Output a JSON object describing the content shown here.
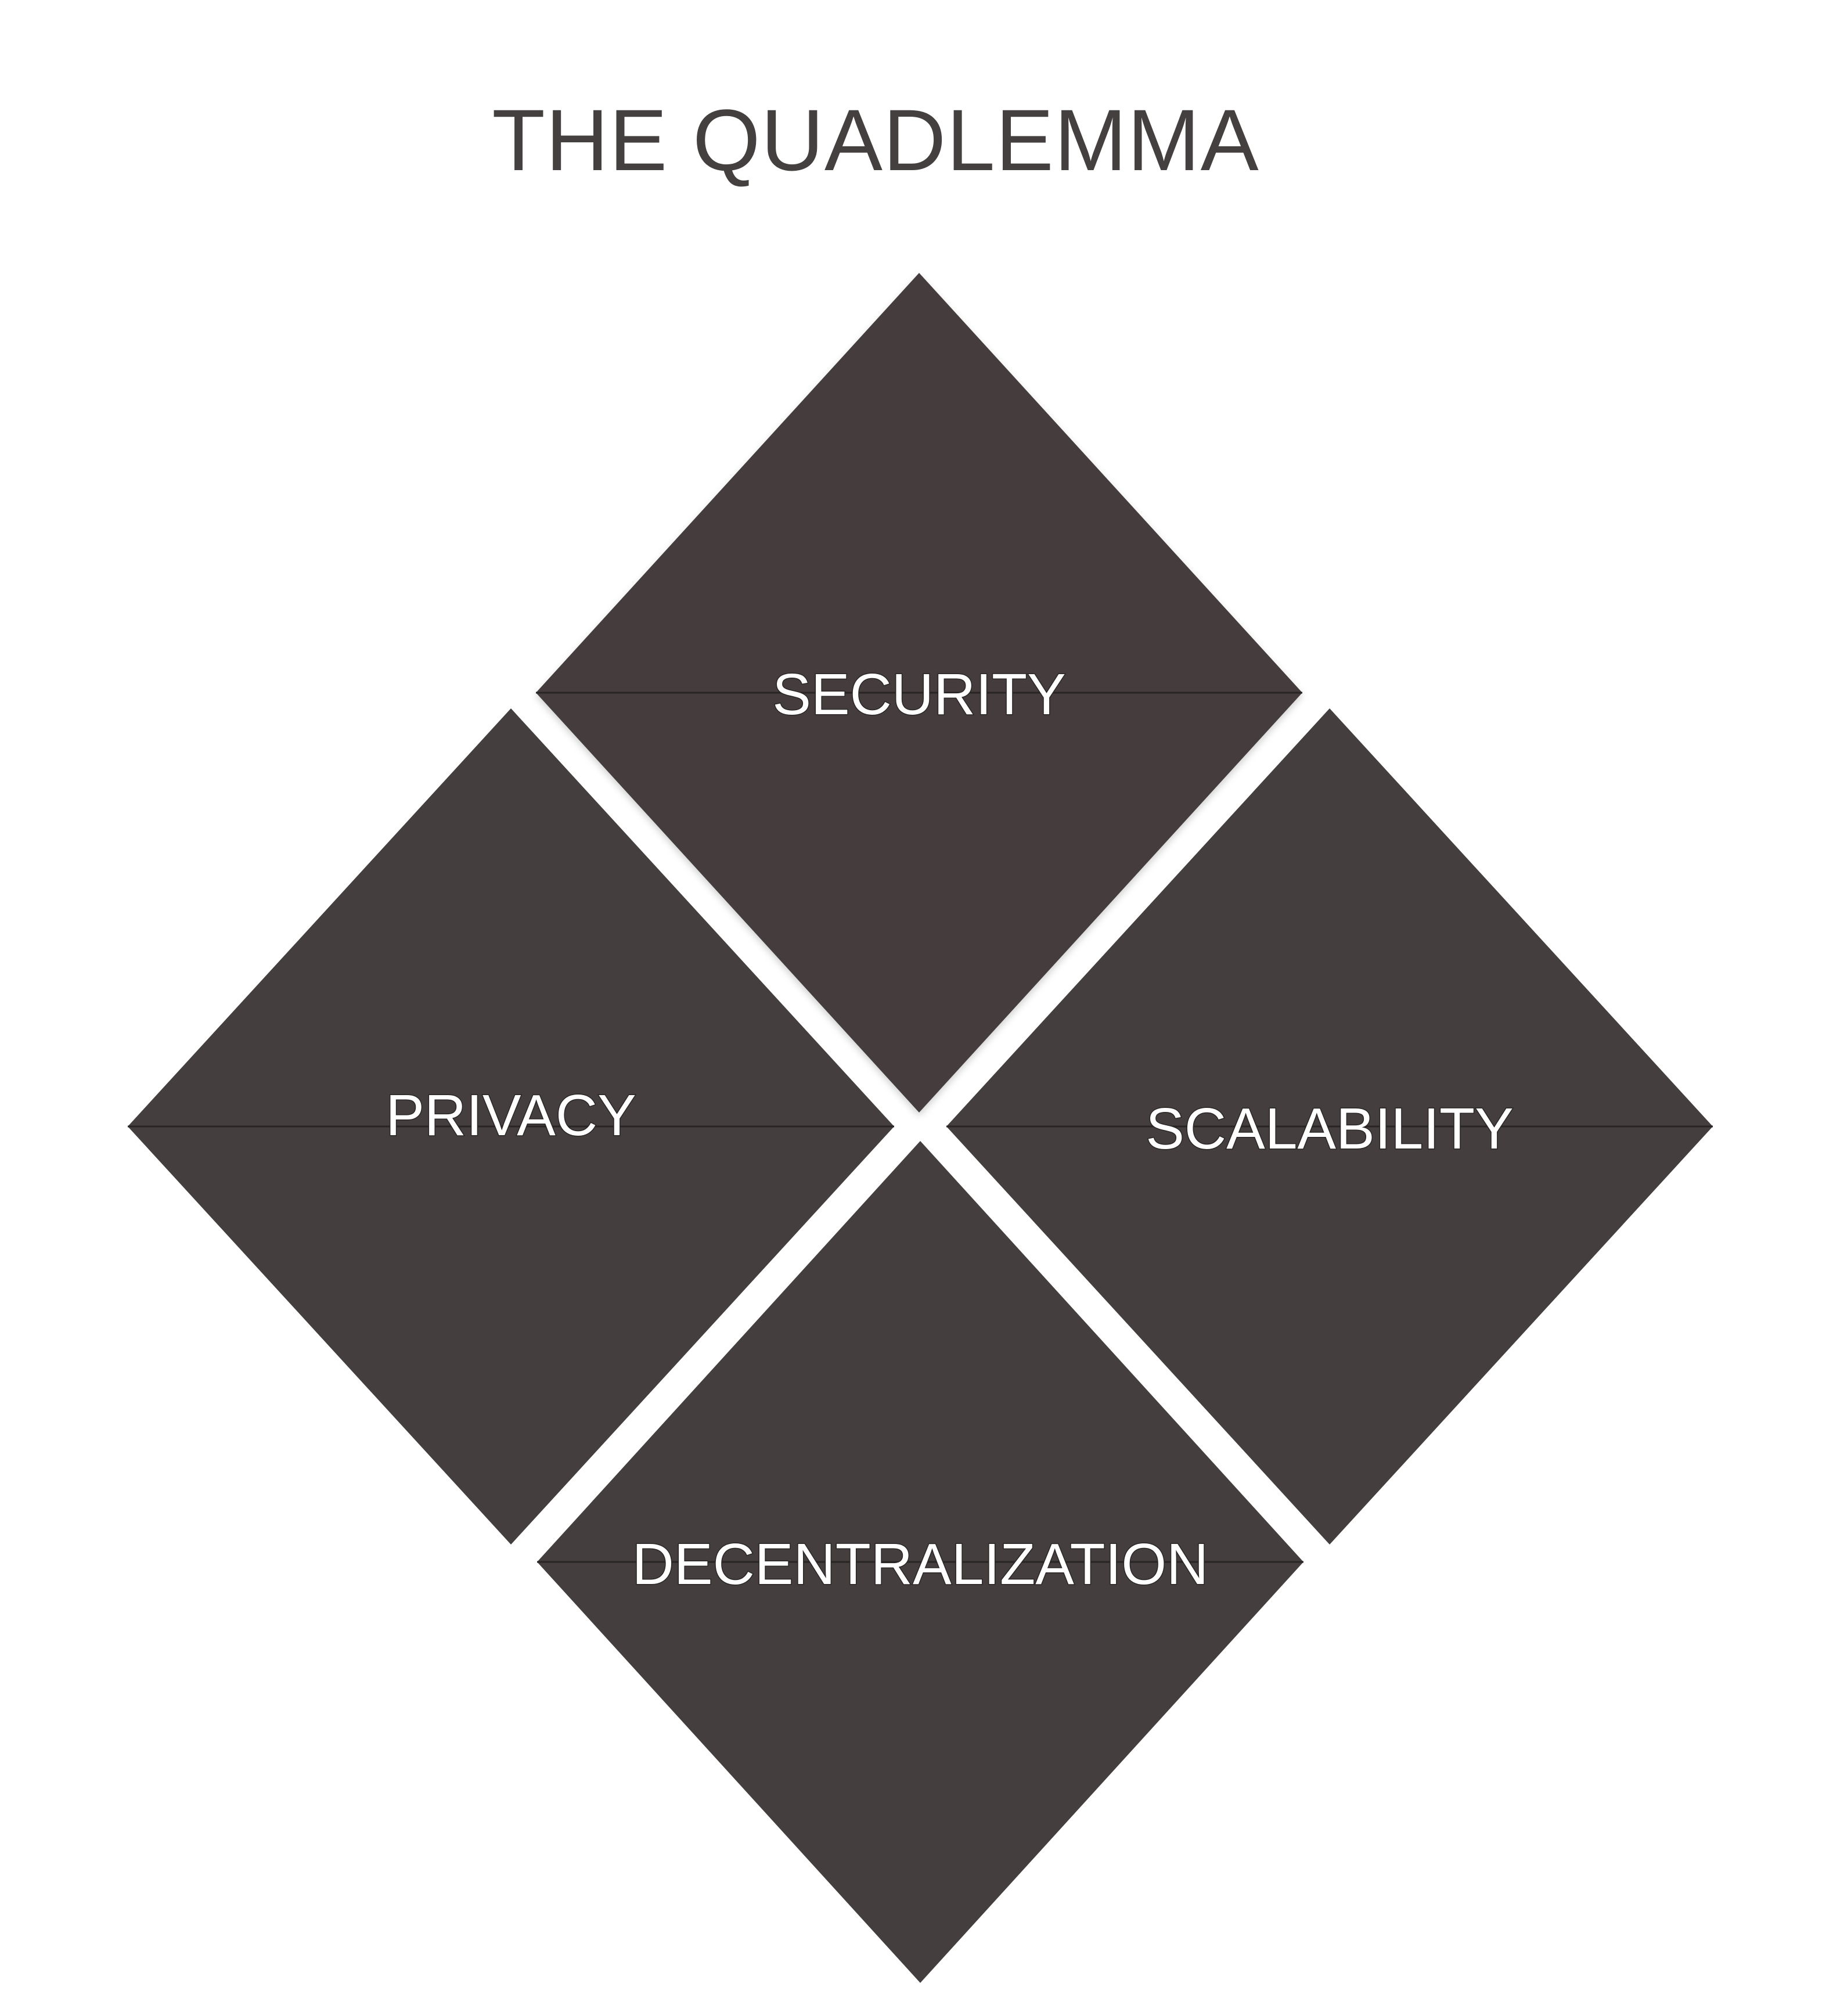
{
  "title": "THE QUADLEMMA",
  "colors": {
    "diamond_fill": "#443e3e",
    "label_text": "#ffffff",
    "title_text": "#454040",
    "background": "#ffffff"
  },
  "quadrants": {
    "top": {
      "label": "SECURITY"
    },
    "left": {
      "label": "PRIVACY"
    },
    "right": {
      "label": "SCALABILITY"
    },
    "bottom": {
      "label": "DECENTRALIZATION"
    }
  }
}
